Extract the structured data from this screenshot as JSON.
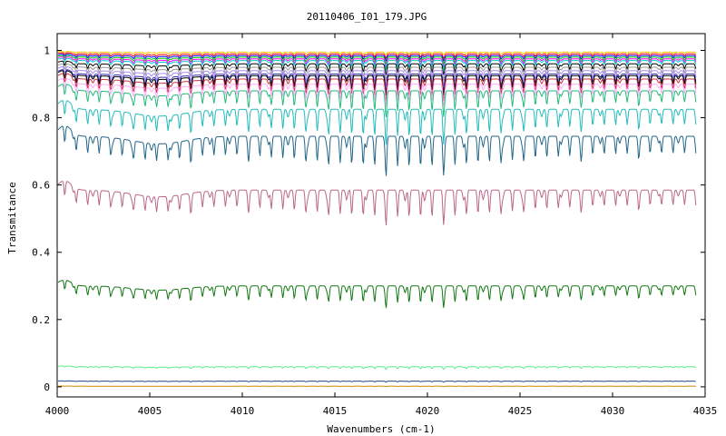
{
  "chart_data": {
    "type": "line",
    "title": "20110406_I01_179.JPG",
    "xlabel": "Wavenumbers (cm-1)",
    "ylabel": "Transmitance",
    "xlim": [
      4000,
      4035
    ],
    "ylim": [
      -0.03,
      1.05
    ],
    "xticks": [
      4000,
      4005,
      4010,
      4015,
      4020,
      4025,
      4030,
      4035
    ],
    "xtick_labels": [
      "4000",
      "4005",
      "4010",
      "4015",
      "4020",
      "4025",
      "4030",
      "4035"
    ],
    "yticks": [
      0,
      0.2,
      0.4,
      0.6,
      0.8,
      1
    ],
    "ytick_labels": [
      "0",
      "0.2",
      "0.4",
      "0.6",
      "0.8",
      "1"
    ],
    "grid": false,
    "legend": "none",
    "series": [
      {
        "color": "#ffcc00",
        "baseline": 0.995,
        "depth": 0.006
      },
      {
        "color": "#ff0000",
        "baseline": 0.99,
        "depth": 0.01
      },
      {
        "color": "#0000ff",
        "baseline": 0.985,
        "depth": 0.012
      },
      {
        "color": "#00cc00",
        "baseline": 0.98,
        "depth": 0.015
      },
      {
        "color": "#ff00ff",
        "baseline": 0.975,
        "depth": 0.018
      },
      {
        "color": "#00cccc",
        "baseline": 0.97,
        "depth": 0.02
      },
      {
        "color": "#000000",
        "baseline": 0.96,
        "depth": 0.025
      },
      {
        "color": "#999999",
        "baseline": 0.95,
        "depth": 0.03
      },
      {
        "color": "#aa88ff",
        "baseline": 0.94,
        "depth": 0.035
      },
      {
        "color": "#3333aa",
        "baseline": 0.93,
        "depth": 0.04
      },
      {
        "color": "#000000",
        "baseline": 0.925,
        "depth": 0.045
      },
      {
        "color": "#cc3344",
        "baseline": 0.915,
        "depth": 0.05
      },
      {
        "color": "#ffaaff",
        "baseline": 0.9,
        "depth": 0.05
      },
      {
        "color": "#22bb77",
        "baseline": 0.88,
        "depth": 0.06
      },
      {
        "color": "#22bbbb",
        "baseline": 0.825,
        "depth": 0.08
      },
      {
        "color": "#226688",
        "baseline": 0.745,
        "depth": 0.09
      },
      {
        "color": "#bb6688",
        "baseline": 0.585,
        "depth": 0.08
      },
      {
        "color": "#117711",
        "baseline": 0.3,
        "depth": 0.05
      },
      {
        "color": "#55ee88",
        "baseline": 0.06,
        "depth": 0.006
      },
      {
        "color": "#224488",
        "baseline": 0.017,
        "depth": 0.002
      },
      {
        "color": "#cc8800",
        "baseline": 0.002,
        "depth": 0.001
      }
    ]
  }
}
